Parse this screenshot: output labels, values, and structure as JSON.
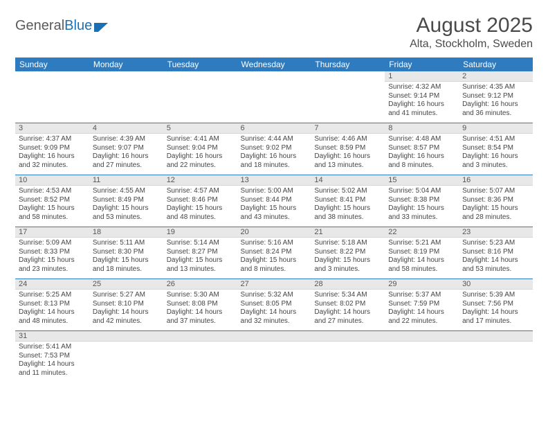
{
  "branding": {
    "word1": "General",
    "word2": "Blue"
  },
  "title": "August 2025",
  "location": "Alta, Stockholm, Sweden",
  "colors": {
    "header_bg": "#2f7bbf",
    "header_text": "#ffffff",
    "daynum_bg": "#e8e8e8",
    "cell_border": "#2f7bbf",
    "body_text": "#444444",
    "logo_gray": "#5a5a5a",
    "logo_blue": "#1a6fb5"
  },
  "weekdays": [
    "Sunday",
    "Monday",
    "Tuesday",
    "Wednesday",
    "Thursday",
    "Friday",
    "Saturday"
  ],
  "weeks": [
    [
      {
        "n": "",
        "sr": "",
        "ss": "",
        "dl": ""
      },
      {
        "n": "",
        "sr": "",
        "ss": "",
        "dl": ""
      },
      {
        "n": "",
        "sr": "",
        "ss": "",
        "dl": ""
      },
      {
        "n": "",
        "sr": "",
        "ss": "",
        "dl": ""
      },
      {
        "n": "",
        "sr": "",
        "ss": "",
        "dl": ""
      },
      {
        "n": "1",
        "sr": "Sunrise: 4:32 AM",
        "ss": "Sunset: 9:14 PM",
        "dl": "Daylight: 16 hours and 41 minutes."
      },
      {
        "n": "2",
        "sr": "Sunrise: 4:35 AM",
        "ss": "Sunset: 9:12 PM",
        "dl": "Daylight: 16 hours and 36 minutes."
      }
    ],
    [
      {
        "n": "3",
        "sr": "Sunrise: 4:37 AM",
        "ss": "Sunset: 9:09 PM",
        "dl": "Daylight: 16 hours and 32 minutes."
      },
      {
        "n": "4",
        "sr": "Sunrise: 4:39 AM",
        "ss": "Sunset: 9:07 PM",
        "dl": "Daylight: 16 hours and 27 minutes."
      },
      {
        "n": "5",
        "sr": "Sunrise: 4:41 AM",
        "ss": "Sunset: 9:04 PM",
        "dl": "Daylight: 16 hours and 22 minutes."
      },
      {
        "n": "6",
        "sr": "Sunrise: 4:44 AM",
        "ss": "Sunset: 9:02 PM",
        "dl": "Daylight: 16 hours and 18 minutes."
      },
      {
        "n": "7",
        "sr": "Sunrise: 4:46 AM",
        "ss": "Sunset: 8:59 PM",
        "dl": "Daylight: 16 hours and 13 minutes."
      },
      {
        "n": "8",
        "sr": "Sunrise: 4:48 AM",
        "ss": "Sunset: 8:57 PM",
        "dl": "Daylight: 16 hours and 8 minutes."
      },
      {
        "n": "9",
        "sr": "Sunrise: 4:51 AM",
        "ss": "Sunset: 8:54 PM",
        "dl": "Daylight: 16 hours and 3 minutes."
      }
    ],
    [
      {
        "n": "10",
        "sr": "Sunrise: 4:53 AM",
        "ss": "Sunset: 8:52 PM",
        "dl": "Daylight: 15 hours and 58 minutes."
      },
      {
        "n": "11",
        "sr": "Sunrise: 4:55 AM",
        "ss": "Sunset: 8:49 PM",
        "dl": "Daylight: 15 hours and 53 minutes."
      },
      {
        "n": "12",
        "sr": "Sunrise: 4:57 AM",
        "ss": "Sunset: 8:46 PM",
        "dl": "Daylight: 15 hours and 48 minutes."
      },
      {
        "n": "13",
        "sr": "Sunrise: 5:00 AM",
        "ss": "Sunset: 8:44 PM",
        "dl": "Daylight: 15 hours and 43 minutes."
      },
      {
        "n": "14",
        "sr": "Sunrise: 5:02 AM",
        "ss": "Sunset: 8:41 PM",
        "dl": "Daylight: 15 hours and 38 minutes."
      },
      {
        "n": "15",
        "sr": "Sunrise: 5:04 AM",
        "ss": "Sunset: 8:38 PM",
        "dl": "Daylight: 15 hours and 33 minutes."
      },
      {
        "n": "16",
        "sr": "Sunrise: 5:07 AM",
        "ss": "Sunset: 8:36 PM",
        "dl": "Daylight: 15 hours and 28 minutes."
      }
    ],
    [
      {
        "n": "17",
        "sr": "Sunrise: 5:09 AM",
        "ss": "Sunset: 8:33 PM",
        "dl": "Daylight: 15 hours and 23 minutes."
      },
      {
        "n": "18",
        "sr": "Sunrise: 5:11 AM",
        "ss": "Sunset: 8:30 PM",
        "dl": "Daylight: 15 hours and 18 minutes."
      },
      {
        "n": "19",
        "sr": "Sunrise: 5:14 AM",
        "ss": "Sunset: 8:27 PM",
        "dl": "Daylight: 15 hours and 13 minutes."
      },
      {
        "n": "20",
        "sr": "Sunrise: 5:16 AM",
        "ss": "Sunset: 8:24 PM",
        "dl": "Daylight: 15 hours and 8 minutes."
      },
      {
        "n": "21",
        "sr": "Sunrise: 5:18 AM",
        "ss": "Sunset: 8:22 PM",
        "dl": "Daylight: 15 hours and 3 minutes."
      },
      {
        "n": "22",
        "sr": "Sunrise: 5:21 AM",
        "ss": "Sunset: 8:19 PM",
        "dl": "Daylight: 14 hours and 58 minutes."
      },
      {
        "n": "23",
        "sr": "Sunrise: 5:23 AM",
        "ss": "Sunset: 8:16 PM",
        "dl": "Daylight: 14 hours and 53 minutes."
      }
    ],
    [
      {
        "n": "24",
        "sr": "Sunrise: 5:25 AM",
        "ss": "Sunset: 8:13 PM",
        "dl": "Daylight: 14 hours and 48 minutes."
      },
      {
        "n": "25",
        "sr": "Sunrise: 5:27 AM",
        "ss": "Sunset: 8:10 PM",
        "dl": "Daylight: 14 hours and 42 minutes."
      },
      {
        "n": "26",
        "sr": "Sunrise: 5:30 AM",
        "ss": "Sunset: 8:08 PM",
        "dl": "Daylight: 14 hours and 37 minutes."
      },
      {
        "n": "27",
        "sr": "Sunrise: 5:32 AM",
        "ss": "Sunset: 8:05 PM",
        "dl": "Daylight: 14 hours and 32 minutes."
      },
      {
        "n": "28",
        "sr": "Sunrise: 5:34 AM",
        "ss": "Sunset: 8:02 PM",
        "dl": "Daylight: 14 hours and 27 minutes."
      },
      {
        "n": "29",
        "sr": "Sunrise: 5:37 AM",
        "ss": "Sunset: 7:59 PM",
        "dl": "Daylight: 14 hours and 22 minutes."
      },
      {
        "n": "30",
        "sr": "Sunrise: 5:39 AM",
        "ss": "Sunset: 7:56 PM",
        "dl": "Daylight: 14 hours and 17 minutes."
      }
    ],
    [
      {
        "n": "31",
        "sr": "Sunrise: 5:41 AM",
        "ss": "Sunset: 7:53 PM",
        "dl": "Daylight: 14 hours and 11 minutes."
      },
      {
        "n": "",
        "sr": "",
        "ss": "",
        "dl": ""
      },
      {
        "n": "",
        "sr": "",
        "ss": "",
        "dl": ""
      },
      {
        "n": "",
        "sr": "",
        "ss": "",
        "dl": ""
      },
      {
        "n": "",
        "sr": "",
        "ss": "",
        "dl": ""
      },
      {
        "n": "",
        "sr": "",
        "ss": "",
        "dl": ""
      },
      {
        "n": "",
        "sr": "",
        "ss": "",
        "dl": ""
      }
    ]
  ]
}
